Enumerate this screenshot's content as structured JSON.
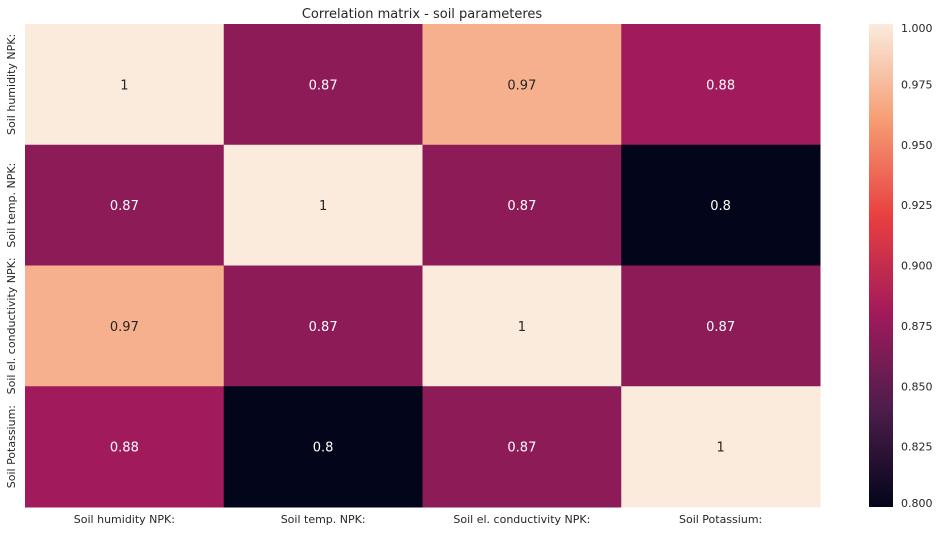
{
  "chart_data": {
    "type": "heatmap",
    "title": "Correlation matrix - soil parameteres",
    "xlabel": "",
    "ylabel": "",
    "x_categories": [
      "Soil humidity NPK:",
      "Soil temp. NPK:",
      "Soil el. conductivity NPK:",
      "Soil Potassium:"
    ],
    "y_categories": [
      "Soil humidity NPK:",
      "Soil temp. NPK:",
      "Soil el. conductivity NPK:",
      "Soil Potassium:"
    ],
    "values": [
      [
        1,
        0.87,
        0.97,
        0.88
      ],
      [
        0.87,
        1,
        0.87,
        0.8
      ],
      [
        0.97,
        0.87,
        1,
        0.87
      ],
      [
        0.88,
        0.8,
        0.87,
        1
      ]
    ],
    "cell_labels": [
      [
        "1",
        "0.87",
        "0.97",
        "0.88"
      ],
      [
        "0.87",
        "1",
        "0.87",
        "0.8"
      ],
      [
        "0.97",
        "0.87",
        "1",
        "0.87"
      ],
      [
        "0.88",
        "0.8",
        "0.87",
        "1"
      ]
    ],
    "colorbar": {
      "range": [
        0.8,
        1.0
      ],
      "ticks": [
        0.8,
        0.825,
        0.85,
        0.875,
        0.9,
        0.925,
        0.95,
        0.975,
        1.0
      ],
      "tick_labels": [
        "0.800",
        "0.825",
        "0.850",
        "0.875",
        "0.900",
        "0.925",
        "0.950",
        "0.975",
        "1.000"
      ],
      "colormap": "rocket",
      "colormap_stops": [
        "#03051a",
        "#4c1d4b",
        "#a11a5b",
        "#e83f3f",
        "#f69c73",
        "#faebdd"
      ]
    },
    "grid": false
  }
}
